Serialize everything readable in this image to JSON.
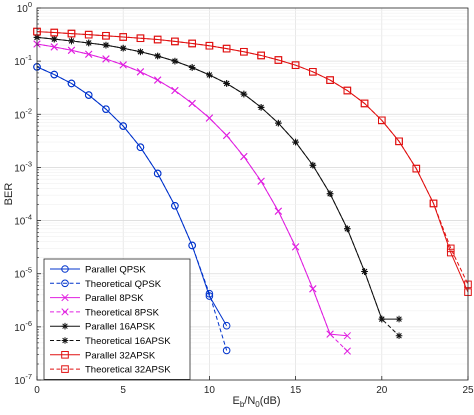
{
  "chart_data": {
    "type": "line",
    "title": "",
    "xlabel": "E_b/N_0(dB)",
    "ylabel": "BER",
    "xlim": [
      0,
      25
    ],
    "ylim": [
      1e-07,
      1
    ],
    "yscale": "log",
    "grid": true,
    "legend_position": "bottom-left",
    "x_ticks": [
      0,
      5,
      10,
      15,
      20,
      25
    ],
    "y_ticks": [
      {
        "exp": "0",
        "v": 1
      },
      {
        "exp": "-1",
        "v": 0.1
      },
      {
        "exp": "-2",
        "v": 0.01
      },
      {
        "exp": "-3",
        "v": 0.001
      },
      {
        "exp": "-4",
        "v": 0.0001
      },
      {
        "exp": "-5",
        "v": 1e-05
      },
      {
        "exp": "-6",
        "v": 1e-06
      },
      {
        "exp": "-7",
        "v": 1e-07
      }
    ],
    "series": [
      {
        "name": "Parallel QPSK",
        "color": "#0033cc",
        "dash": false,
        "marker": "circle",
        "x": [
          0,
          1,
          2,
          3,
          4,
          5,
          6,
          7,
          8,
          9,
          10,
          11
        ],
        "y": [
          0.078,
          0.056,
          0.038,
          0.023,
          0.0125,
          0.006,
          0.0024,
          0.00077,
          0.00019,
          3.4e-05,
          3.8e-06,
          1.05e-06
        ]
      },
      {
        "name": "Theoretical QPSK",
        "color": "#0033cc",
        "dash": true,
        "marker": "circle",
        "x": [
          0,
          1,
          2,
          3,
          4,
          5,
          6,
          7,
          8,
          9,
          10,
          11
        ],
        "y": [
          0.078,
          0.056,
          0.038,
          0.023,
          0.0125,
          0.006,
          0.0024,
          0.00077,
          0.00019,
          3.4e-05,
          4.2e-06,
          3.6e-07
        ]
      },
      {
        "name": "Parallel 8PSK",
        "color": "#e020e0",
        "dash": false,
        "marker": "x",
        "x": [
          0,
          1,
          2,
          3,
          4,
          5,
          6,
          7,
          8,
          9,
          10,
          11,
          12,
          13,
          14,
          15,
          16,
          17,
          18
        ],
        "y": [
          0.21,
          0.185,
          0.16,
          0.135,
          0.11,
          0.085,
          0.063,
          0.044,
          0.028,
          0.016,
          0.0085,
          0.004,
          0.0016,
          0.00055,
          0.00015,
          3.2e-05,
          5.2e-06,
          7.3e-07,
          6.8e-07
        ]
      },
      {
        "name": "Theoretical 8PSK",
        "color": "#e020e0",
        "dash": true,
        "marker": "x",
        "x": [
          0,
          1,
          2,
          3,
          4,
          5,
          6,
          7,
          8,
          9,
          10,
          11,
          12,
          13,
          14,
          15,
          16,
          17,
          18
        ],
        "y": [
          0.21,
          0.185,
          0.16,
          0.135,
          0.11,
          0.085,
          0.063,
          0.044,
          0.028,
          0.016,
          0.0085,
          0.004,
          0.0016,
          0.00055,
          0.00015,
          3.2e-05,
          5.2e-06,
          7.3e-07,
          3.5e-07
        ]
      },
      {
        "name": "Parallel 16APSK",
        "color": "#111111",
        "dash": false,
        "marker": "star",
        "x": [
          0,
          1,
          2,
          3,
          4,
          5,
          6,
          7,
          8,
          9,
          10,
          11,
          12,
          13,
          14,
          15,
          16,
          17,
          18,
          19,
          20,
          21
        ],
        "y": [
          0.28,
          0.26,
          0.24,
          0.22,
          0.2,
          0.175,
          0.15,
          0.125,
          0.1,
          0.076,
          0.055,
          0.038,
          0.024,
          0.0135,
          0.0068,
          0.003,
          0.0011,
          0.00032,
          7e-05,
          1.1e-05,
          1.4e-06,
          1.4e-06
        ]
      },
      {
        "name": "Theoretical 16APSK",
        "color": "#111111",
        "dash": true,
        "marker": "star",
        "x": [
          0,
          1,
          2,
          3,
          4,
          5,
          6,
          7,
          8,
          9,
          10,
          11,
          12,
          13,
          14,
          15,
          16,
          17,
          18,
          19,
          20,
          21
        ],
        "y": [
          0.28,
          0.26,
          0.24,
          0.22,
          0.2,
          0.175,
          0.15,
          0.125,
          0.1,
          0.076,
          0.055,
          0.038,
          0.024,
          0.0135,
          0.0068,
          0.003,
          0.0011,
          0.00032,
          7e-05,
          1.1e-05,
          1.4e-06,
          6.8e-07
        ]
      },
      {
        "name": "Parallel 32APSK",
        "color": "#e01010",
        "dash": false,
        "marker": "square",
        "x": [
          0,
          1,
          2,
          3,
          4,
          5,
          6,
          7,
          8,
          9,
          10,
          11,
          12,
          13,
          14,
          15,
          16,
          17,
          18,
          19,
          20,
          21,
          22,
          23,
          24,
          25
        ],
        "y": [
          0.36,
          0.345,
          0.33,
          0.315,
          0.3,
          0.285,
          0.27,
          0.255,
          0.235,
          0.215,
          0.195,
          0.172,
          0.15,
          0.128,
          0.105,
          0.084,
          0.063,
          0.044,
          0.028,
          0.016,
          0.0077,
          0.0031,
          0.00095,
          0.00021,
          2.5e-05,
          4.5e-06
        ]
      },
      {
        "name": "Theoretical 32APSK",
        "color": "#e01010",
        "dash": true,
        "marker": "square",
        "x": [
          0,
          1,
          2,
          3,
          4,
          5,
          6,
          7,
          8,
          9,
          10,
          11,
          12,
          13,
          14,
          15,
          16,
          17,
          18,
          19,
          20,
          21,
          22,
          23,
          24,
          25
        ],
        "y": [
          0.36,
          0.345,
          0.33,
          0.315,
          0.3,
          0.285,
          0.27,
          0.255,
          0.235,
          0.215,
          0.195,
          0.172,
          0.15,
          0.128,
          0.105,
          0.084,
          0.063,
          0.044,
          0.028,
          0.016,
          0.0077,
          0.0031,
          0.00095,
          0.00021,
          3e-05,
          6.3e-06
        ]
      }
    ]
  }
}
